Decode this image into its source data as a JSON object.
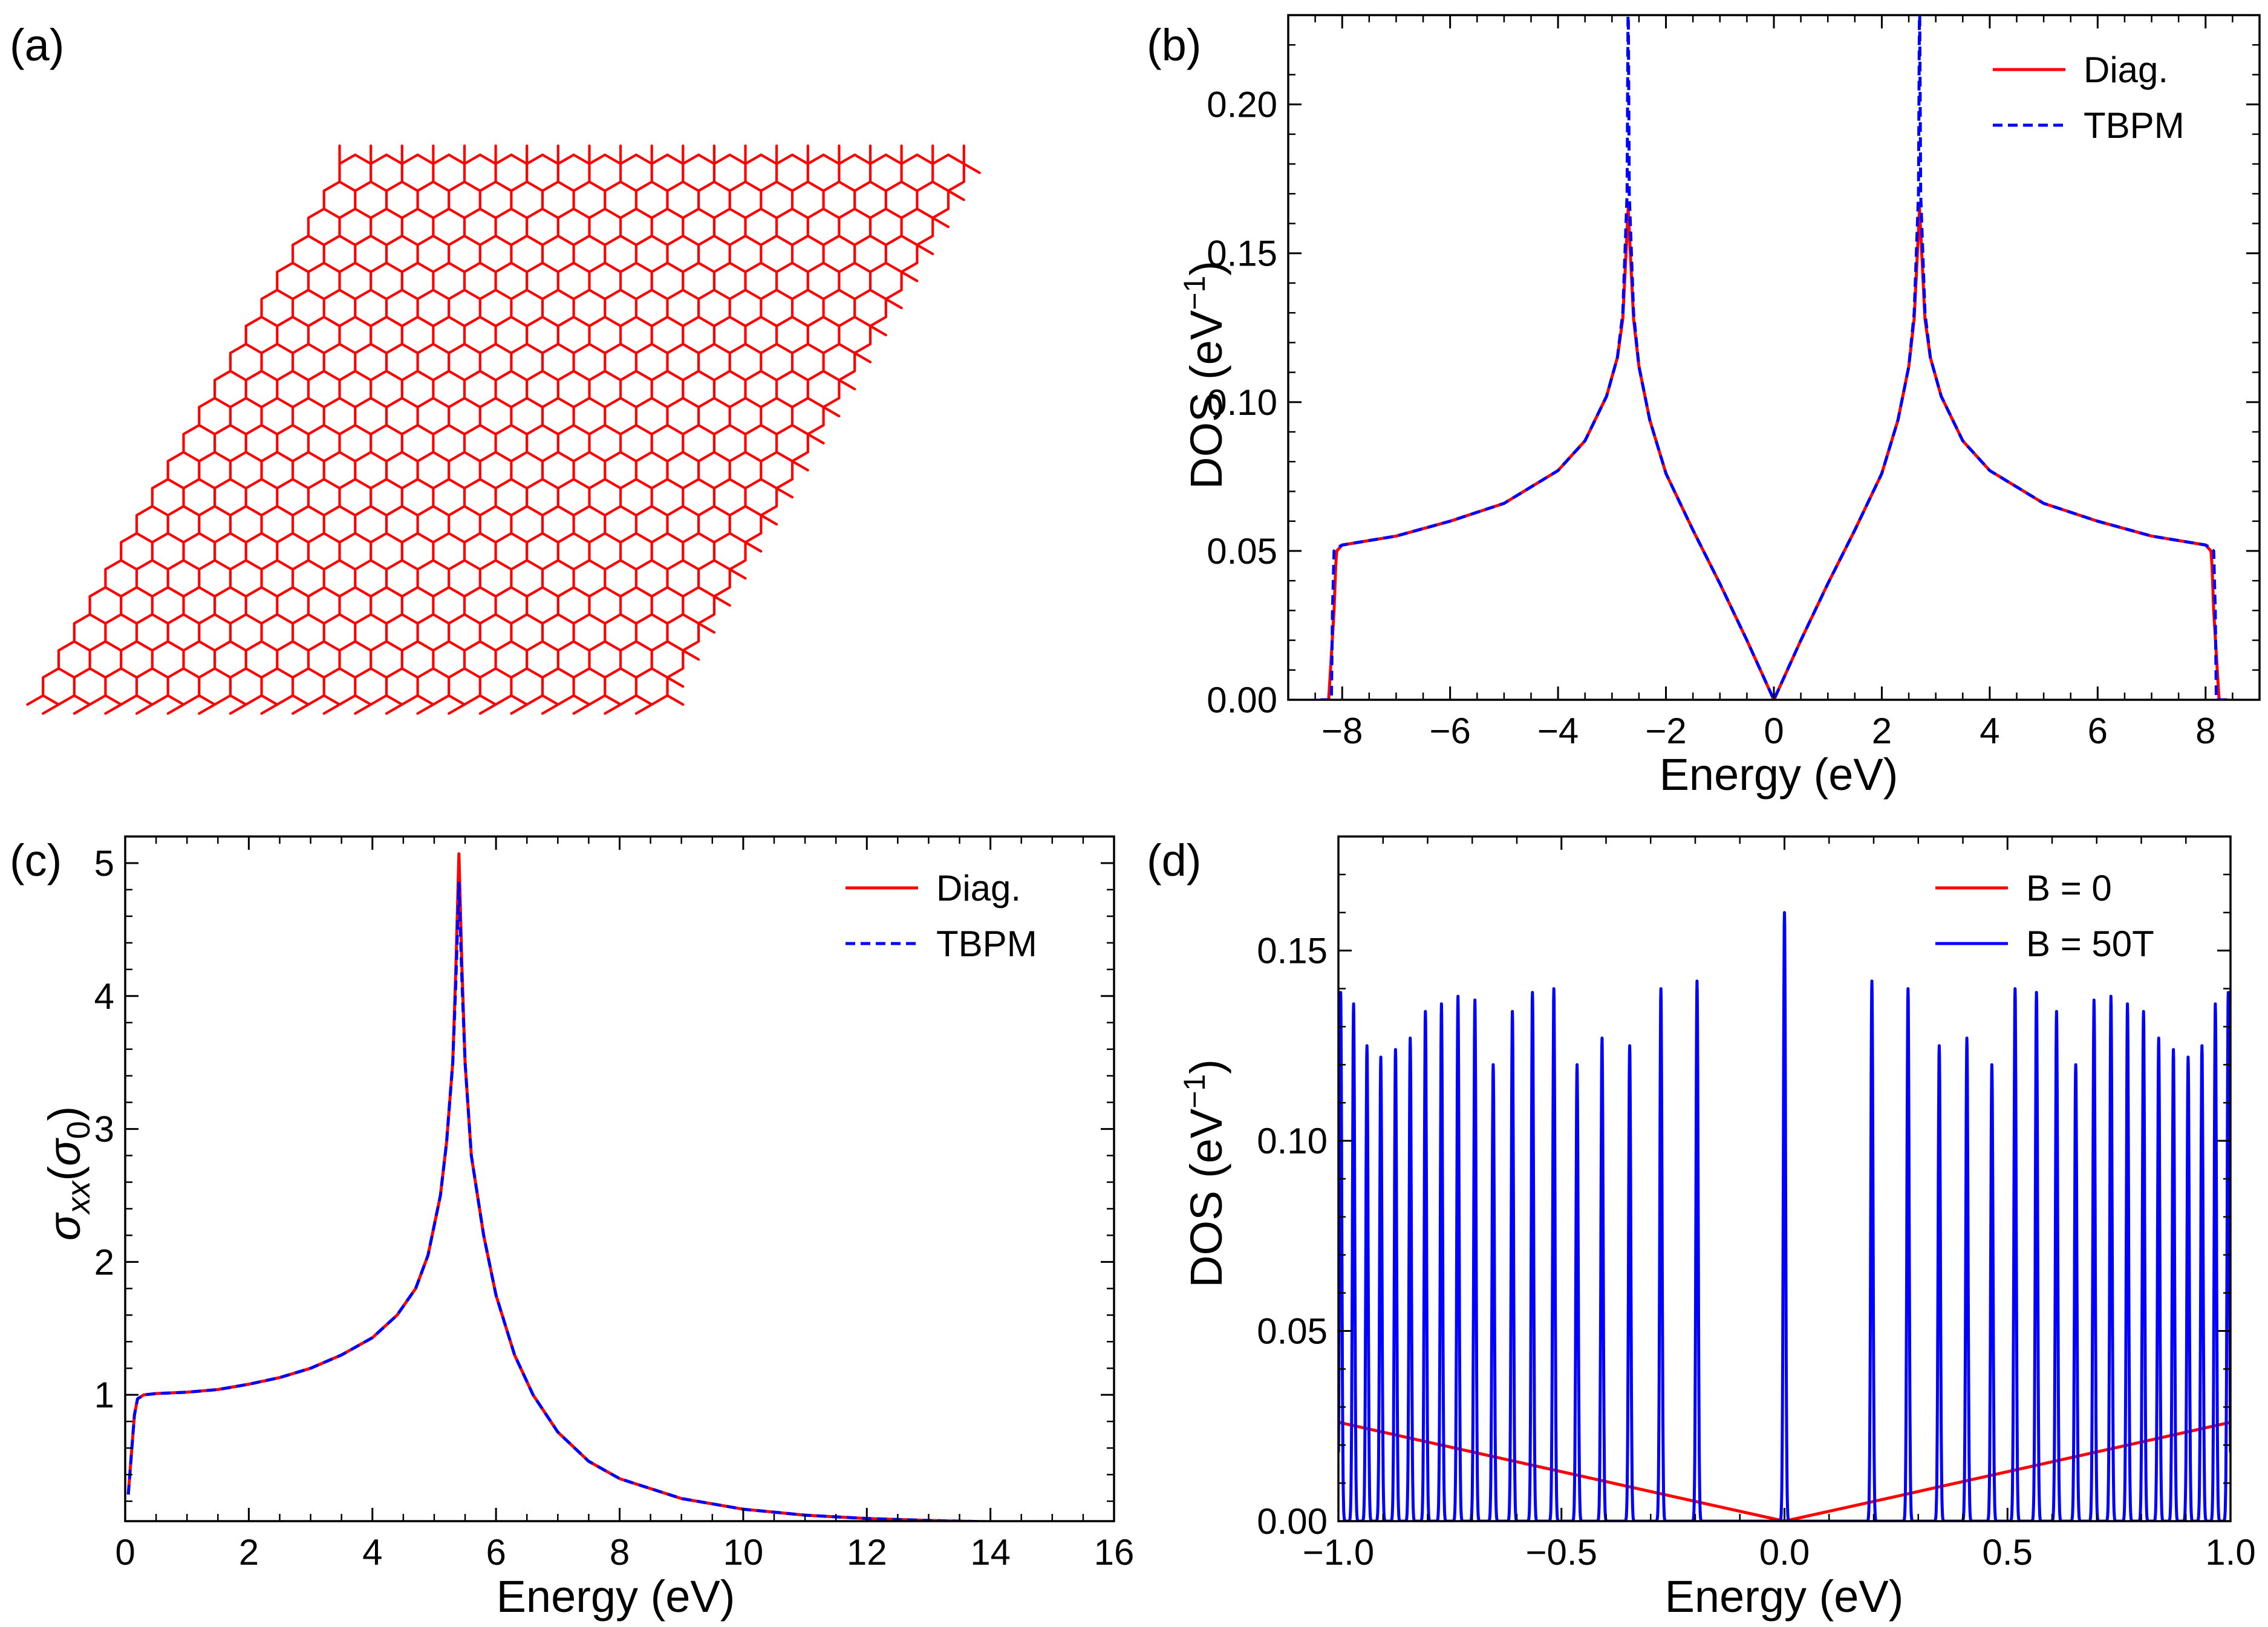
{
  "figure": {
    "panels": [
      {
        "label": "(a)",
        "kind": "lattice",
        "description_color": "#ff0000"
      },
      {
        "label": "(b)"
      },
      {
        "label": "(c)"
      },
      {
        "label": "(d)"
      }
    ]
  },
  "colors": {
    "diag": "#ff0000",
    "tbpm": "#0000ff",
    "b0": "#ff0000",
    "b50": "#0000ff",
    "lattice": "#ff0000"
  },
  "chart_data": [
    {
      "id": "b",
      "type": "line",
      "title": "",
      "xlabel": "Energy (eV)",
      "ylabel": "DOS (eV^-1)",
      "xlim": [
        -9,
        9
      ],
      "ylim": [
        0,
        0.23
      ],
      "xticks": [
        -8,
        -6,
        -4,
        -2,
        0,
        2,
        4,
        6,
        8
      ],
      "xtick_labels": [
        "−8",
        "−6",
        "−4",
        "−2",
        "0",
        "2",
        "4",
        "6",
        "8"
      ],
      "yticks": [
        0.0,
        0.05,
        0.1,
        0.15,
        0.2
      ],
      "ytick_labels": [
        "0.00",
        "0.05",
        "0.10",
        "0.15",
        "0.20"
      ],
      "legend": {
        "position": "top-right",
        "entries": [
          "Diag.",
          "TBPM"
        ]
      },
      "series": [
        {
          "name": "Diag.",
          "style": "solid",
          "color": "#ff0000",
          "x": [
            -8.4,
            -8.25,
            -8.15,
            -8.12,
            -8.1,
            -8.0,
            -7.0,
            -6.0,
            -5.0,
            -4.0,
            -3.5,
            -3.1,
            -2.9,
            -2.8,
            -2.7,
            -2.6,
            -2.5,
            -2.3,
            -2.0,
            -1.5,
            -1.0,
            -0.5,
            0.0,
            0.5,
            1.0,
            1.5,
            2.0,
            2.3,
            2.5,
            2.6,
            2.7,
            2.8,
            2.9,
            3.1,
            3.5,
            4.0,
            5.0,
            6.0,
            7.0,
            8.0,
            8.1,
            8.12,
            8.15,
            8.25,
            8.4
          ],
          "y": [
            0.0,
            0.0,
            0.03,
            0.045,
            0.05,
            0.052,
            0.055,
            0.06,
            0.066,
            0.077,
            0.087,
            0.102,
            0.115,
            0.128,
            0.165,
            0.128,
            0.112,
            0.094,
            0.076,
            0.057,
            0.039,
            0.02,
            0.0,
            0.02,
            0.039,
            0.057,
            0.076,
            0.094,
            0.112,
            0.128,
            0.165,
            0.128,
            0.115,
            0.102,
            0.087,
            0.077,
            0.066,
            0.06,
            0.055,
            0.052,
            0.05,
            0.045,
            0.03,
            0.0,
            0.0
          ]
        },
        {
          "name": "TBPM",
          "style": "dashed",
          "color": "#0000ff",
          "x": [
            -8.4,
            -8.2,
            -8.18,
            -8.15,
            -8.1,
            -8.0,
            -7.0,
            -6.0,
            -5.0,
            -4.0,
            -3.5,
            -3.1,
            -2.9,
            -2.8,
            -2.72,
            -2.7,
            -2.68,
            -2.6,
            -2.5,
            -2.3,
            -2.0,
            -1.5,
            -1.0,
            -0.5,
            0.0,
            0.5,
            1.0,
            1.5,
            2.0,
            2.3,
            2.5,
            2.6,
            2.68,
            2.7,
            2.72,
            2.8,
            2.9,
            3.1,
            3.5,
            4.0,
            5.0,
            6.0,
            7.0,
            8.0,
            8.1,
            8.15,
            8.18,
            8.2,
            8.4
          ],
          "y": [
            0.0,
            0.0,
            0.03,
            0.05,
            0.051,
            0.052,
            0.055,
            0.06,
            0.066,
            0.077,
            0.087,
            0.102,
            0.115,
            0.13,
            0.17,
            0.24,
            0.17,
            0.13,
            0.112,
            0.094,
            0.076,
            0.057,
            0.039,
            0.02,
            0.0,
            0.02,
            0.039,
            0.057,
            0.076,
            0.094,
            0.112,
            0.13,
            0.17,
            0.24,
            0.17,
            0.13,
            0.115,
            0.102,
            0.087,
            0.077,
            0.066,
            0.06,
            0.055,
            0.052,
            0.051,
            0.05,
            0.03,
            0.0,
            0.0
          ]
        }
      ]
    },
    {
      "id": "c",
      "type": "line",
      "title": "",
      "xlabel": "Energy (eV)",
      "ylabel": "σxx(σ0)",
      "xlim": [
        0,
        16
      ],
      "ylim": [
        0.05,
        5.2
      ],
      "xticks": [
        0,
        2,
        4,
        6,
        8,
        10,
        12,
        14,
        16
      ],
      "xtick_labels": [
        "0",
        "2",
        "4",
        "6",
        "8",
        "10",
        "12",
        "14",
        "16"
      ],
      "yticks": [
        1,
        2,
        3,
        4,
        5
      ],
      "ytick_labels": [
        "1",
        "2",
        "3",
        "4",
        "5"
      ],
      "legend": {
        "position": "top-right",
        "entries": [
          "Diag.",
          "TBPM"
        ]
      },
      "series": [
        {
          "name": "Diag.",
          "style": "solid",
          "color": "#ff0000",
          "x": [
            0.05,
            0.1,
            0.15,
            0.2,
            0.3,
            0.5,
            1.0,
            1.5,
            2.0,
            2.5,
            3.0,
            3.5,
            4.0,
            4.4,
            4.7,
            4.9,
            5.1,
            5.2,
            5.3,
            5.35,
            5.4,
            5.45,
            5.5,
            5.6,
            5.8,
            6.0,
            6.3,
            6.6,
            7.0,
            7.5,
            8.0,
            9.0,
            10.0,
            11.0,
            12.0,
            13.0,
            14.0,
            15.0,
            16.0
          ],
          "y": [
            0.25,
            0.55,
            0.85,
            0.97,
            1.0,
            1.01,
            1.02,
            1.04,
            1.08,
            1.13,
            1.2,
            1.3,
            1.43,
            1.6,
            1.8,
            2.05,
            2.5,
            2.9,
            3.5,
            4.2,
            5.07,
            4.2,
            3.5,
            2.8,
            2.2,
            1.75,
            1.3,
            1.0,
            0.72,
            0.5,
            0.37,
            0.22,
            0.14,
            0.095,
            0.07,
            0.055,
            0.045,
            0.04,
            0.035
          ]
        },
        {
          "name": "TBPM",
          "style": "dashed",
          "color": "#0000ff",
          "x": [
            0.05,
            0.1,
            0.15,
            0.2,
            0.3,
            0.5,
            1.0,
            1.5,
            2.0,
            2.5,
            3.0,
            3.5,
            4.0,
            4.4,
            4.7,
            4.9,
            5.1,
            5.2,
            5.3,
            5.35,
            5.4,
            5.45,
            5.5,
            5.6,
            5.8,
            6.0,
            6.3,
            6.6,
            7.0,
            7.5,
            8.0,
            9.0,
            10.0,
            11.0,
            12.0,
            13.0,
            14.0,
            15.0,
            16.0
          ],
          "y": [
            0.25,
            0.55,
            0.85,
            0.97,
            1.0,
            1.01,
            1.02,
            1.04,
            1.08,
            1.13,
            1.2,
            1.3,
            1.43,
            1.6,
            1.8,
            2.05,
            2.5,
            2.9,
            3.5,
            4.1,
            4.85,
            4.1,
            3.5,
            2.8,
            2.2,
            1.75,
            1.3,
            1.0,
            0.72,
            0.5,
            0.37,
            0.22,
            0.14,
            0.095,
            0.07,
            0.055,
            0.045,
            0.04,
            0.035
          ]
        }
      ]
    },
    {
      "id": "d",
      "type": "line",
      "title": "",
      "xlabel": "Energy (eV)",
      "ylabel": "DOS (eV^-1)",
      "xlim": [
        -1.0,
        1.0
      ],
      "ylim": [
        0,
        0.18
      ],
      "xticks": [
        -1.0,
        -0.5,
        0.0,
        0.5,
        1.0
      ],
      "xtick_labels": [
        "−1.0",
        "−0.5",
        "0.0",
        "0.5",
        "1.0"
      ],
      "yticks": [
        0.0,
        0.05,
        0.1,
        0.15
      ],
      "ytick_labels": [
        "0.00",
        "0.05",
        "0.10",
        "0.15"
      ],
      "legend": {
        "position": "top-right",
        "entries": [
          "B = 0",
          "B = 50T"
        ]
      },
      "series": [
        {
          "name": "B = 0",
          "style": "solid",
          "color": "#ff0000",
          "x": [
            -1.0,
            0.0,
            1.0
          ],
          "y": [
            0.026,
            0.0,
            0.026
          ]
        },
        {
          "name": "B = 50T",
          "style": "solid",
          "color": "#0000ff",
          "kind": "peaks",
          "peak_positions": [
            -0.995,
            -0.966,
            -0.936,
            -0.905,
            -0.872,
            -0.839,
            -0.805,
            -0.769,
            -0.732,
            -0.694,
            -0.653,
            -0.61,
            -0.565,
            -0.517,
            -0.465,
            -0.409,
            -0.347,
            -0.277,
            -0.196,
            0.0,
            0.196,
            0.277,
            0.347,
            0.409,
            0.465,
            0.517,
            0.565,
            0.61,
            0.653,
            0.694,
            0.732,
            0.769,
            0.805,
            0.839,
            0.872,
            0.905,
            0.936,
            0.966,
            0.995
          ],
          "peak_heights": [
            0.139,
            0.136,
            0.125,
            0.122,
            0.124,
            0.127,
            0.134,
            0.136,
            0.138,
            0.137,
            0.12,
            0.134,
            0.139,
            0.14,
            0.12,
            0.127,
            0.125,
            0.14,
            0.142,
            0.16,
            0.142,
            0.14,
            0.125,
            0.127,
            0.12,
            0.14,
            0.139,
            0.134,
            0.12,
            0.137,
            0.138,
            0.136,
            0.134,
            0.127,
            0.124,
            0.122,
            0.125,
            0.136,
            0.139
          ]
        }
      ]
    }
  ]
}
